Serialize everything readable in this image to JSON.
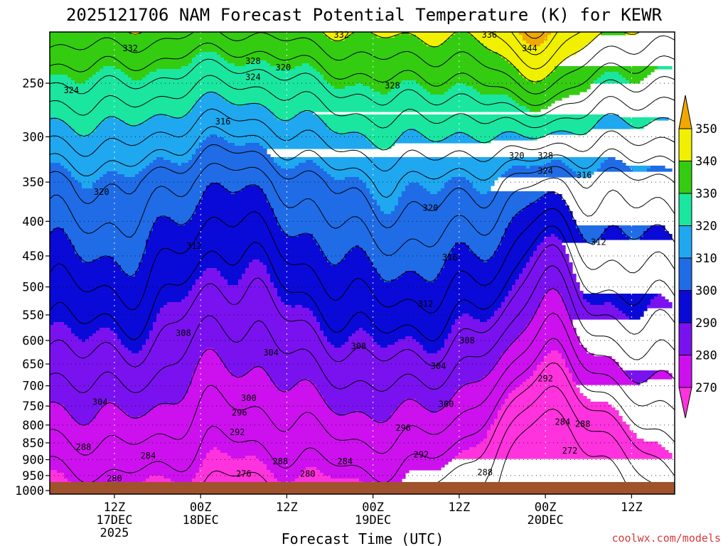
{
  "chart_data": {
    "type": "heatmap",
    "title": "2025121706 NAM Forecast Potential Temperature (K) for KEWR",
    "xlabel": "Forecast Time (UTC)",
    "ylabel": "",
    "credit": "coolwx.com/models",
    "x_hours_range": [
      -3,
      84
    ],
    "y_pressure_range_hPa": [
      1000,
      200
    ],
    "y_scale": "log-pressure",
    "grid": true,
    "x_ticks": [
      {
        "hour": 6,
        "lines": [
          "12Z",
          "17DEC",
          "2025"
        ]
      },
      {
        "hour": 18,
        "lines": [
          "00Z",
          "18DEC"
        ]
      },
      {
        "hour": 30,
        "lines": [
          "12Z"
        ]
      },
      {
        "hour": 42,
        "lines": [
          "00Z",
          "19DEC"
        ]
      },
      {
        "hour": 54,
        "lines": [
          "12Z"
        ]
      },
      {
        "hour": 66,
        "lines": [
          "00Z",
          "20DEC"
        ]
      },
      {
        "hour": 78,
        "lines": [
          "12Z"
        ]
      }
    ],
    "y_ticks": [
      "250",
      "300",
      "350",
      "400",
      "450",
      "500",
      "550",
      "600",
      "650",
      "700",
      "750",
      "800",
      "850",
      "900",
      "950",
      "1000"
    ],
    "colorbar": {
      "labels": [
        "350",
        "340",
        "330",
        "320",
        "310",
        "300",
        "290",
        "280",
        "270"
      ],
      "bins": [
        {
          "lo": 260,
          "hi": 270,
          "color": "#ff33dd"
        },
        {
          "lo": 270,
          "hi": 280,
          "color": "#cc11ee"
        },
        {
          "lo": 280,
          "hi": 290,
          "color": "#7a12f0"
        },
        {
          "lo": 290,
          "hi": 300,
          "color": "#0a0ad8"
        },
        {
          "lo": 300,
          "hi": 310,
          "color": "#1f6ce6"
        },
        {
          "lo": 310,
          "hi": 320,
          "color": "#1fa8f0"
        },
        {
          "lo": 320,
          "hi": 330,
          "color": "#1ae6a0"
        },
        {
          "lo": 330,
          "hi": 340,
          "color": "#33cc11"
        },
        {
          "lo": 340,
          "hi": 350,
          "color": "#f0f000"
        },
        {
          "lo": 350,
          "hi": 360,
          "color": "#f0a800"
        }
      ]
    },
    "ground_color": "#a0522d",
    "contour_interval_K": 4,
    "contour_labels": [
      {
        "value": "332",
        "hour": 8.2,
        "p": 222
      },
      {
        "value": "336",
        "hour": 58.2,
        "p": 212
      },
      {
        "value": "344",
        "hour": 63.8,
        "p": 222
      },
      {
        "value": "328",
        "hour": 25.3,
        "p": 232
      },
      {
        "value": "320",
        "hour": 29.5,
        "p": 237
      },
      {
        "value": "332",
        "hour": 37.6,
        "p": 212
      },
      {
        "value": "324",
        "hour": 0.0,
        "p": 256
      },
      {
        "value": "324",
        "hour": 25.3,
        "p": 245
      },
      {
        "value": "328",
        "hour": 44.7,
        "p": 252
      },
      {
        "value": "316",
        "hour": 21.1,
        "p": 285
      },
      {
        "value": "320",
        "hour": 4.2,
        "p": 362
      },
      {
        "value": "320",
        "hour": 50.0,
        "p": 382
      },
      {
        "value": "320",
        "hour": 62.0,
        "p": 320
      },
      {
        "value": "328",
        "hour": 66.0,
        "p": 320
      },
      {
        "value": "324",
        "hour": 66.0,
        "p": 337
      },
      {
        "value": "316",
        "hour": 71.4,
        "p": 342
      },
      {
        "value": "312",
        "hour": 17.1,
        "p": 435
      },
      {
        "value": "312",
        "hour": 73.4,
        "p": 429
      },
      {
        "value": "316",
        "hour": 52.7,
        "p": 452
      },
      {
        "value": "312",
        "hour": 49.3,
        "p": 530
      },
      {
        "value": "308",
        "hour": 15.6,
        "p": 585
      },
      {
        "value": "304",
        "hour": 27.8,
        "p": 625
      },
      {
        "value": "308",
        "hour": 40.0,
        "p": 612
      },
      {
        "value": "308",
        "hour": 55.1,
        "p": 600
      },
      {
        "value": "304",
        "hour": 51.1,
        "p": 655
      },
      {
        "value": "292",
        "hour": 66.0,
        "p": 683
      },
      {
        "value": "304",
        "hour": 4.0,
        "p": 740
      },
      {
        "value": "300",
        "hour": 24.7,
        "p": 730
      },
      {
        "value": "300",
        "hour": 52.2,
        "p": 745
      },
      {
        "value": "296",
        "hour": 23.4,
        "p": 767
      },
      {
        "value": "296",
        "hour": 46.2,
        "p": 808
      },
      {
        "value": "292",
        "hour": 23.1,
        "p": 820
      },
      {
        "value": "292",
        "hour": 48.7,
        "p": 885
      },
      {
        "value": "284",
        "hour": 68.4,
        "p": 792
      },
      {
        "value": "288",
        "hour": 71.2,
        "p": 797
      },
      {
        "value": "288",
        "hour": 1.7,
        "p": 863
      },
      {
        "value": "284",
        "hour": 10.7,
        "p": 888
      },
      {
        "value": "288",
        "hour": 29.1,
        "p": 905
      },
      {
        "value": "284",
        "hour": 38.1,
        "p": 905
      },
      {
        "value": "272",
        "hour": 69.4,
        "p": 873
      },
      {
        "value": "276",
        "hour": 24.0,
        "p": 945
      },
      {
        "value": "280",
        "hour": 32.9,
        "p": 945
      },
      {
        "value": "288",
        "hour": 57.6,
        "p": 940
      },
      {
        "value": "280",
        "hour": 6.0,
        "p": 960
      }
    ]
  }
}
